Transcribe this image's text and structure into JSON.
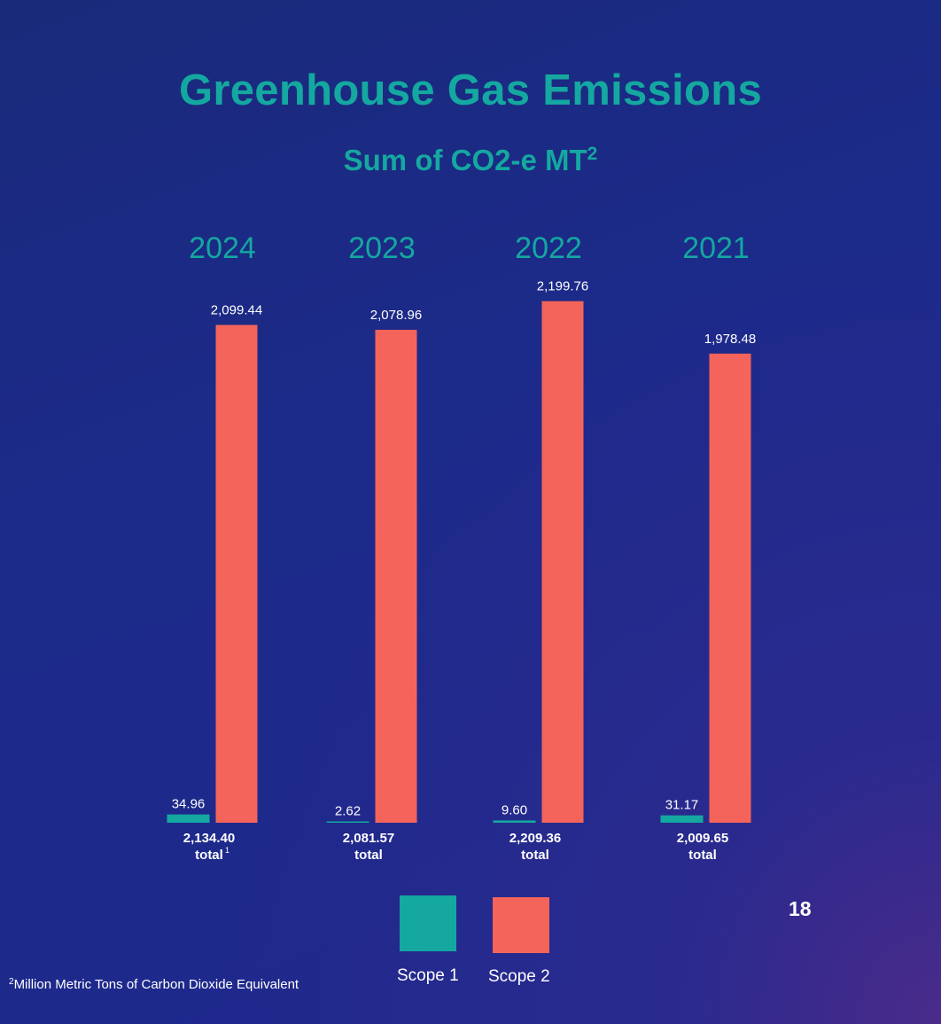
{
  "title": "Greenhouse Gas Emissions",
  "subtitle": "Sum of CO2-e MT",
  "subtitle_superscript": "2",
  "page_number": "18",
  "footnote": {
    "marker": "2",
    "text": "Million Metric Tons of Carbon Dioxide Equivalent"
  },
  "legend": {
    "items": [
      {
        "label": "Scope 1",
        "color": "#14a8a0"
      },
      {
        "label": "Scope 2",
        "color": "#f4645a"
      }
    ]
  },
  "colors": {
    "accent": "#14a8a0",
    "scope1": "#14a8a0",
    "scope2": "#f4645a",
    "text": "#ffffff"
  },
  "chart_data": {
    "type": "bar",
    "categories": [
      "2024",
      "2023",
      "2022",
      "2021"
    ],
    "series": [
      {
        "name": "Scope 1",
        "values": [
          34.96,
          2.62,
          9.6,
          31.17
        ],
        "labels": [
          "34.96",
          "2.62",
          "9.60",
          "31.17"
        ]
      },
      {
        "name": "Scope 2",
        "values": [
          2099.44,
          2078.96,
          2199.76,
          1978.48
        ],
        "labels": [
          "2,099.44",
          "2,078.96",
          "2,199.76",
          "1,978.48"
        ]
      }
    ],
    "totals": [
      {
        "value": "2,134.40",
        "label": "total",
        "footnote_marker": "1"
      },
      {
        "value": "2,081.57",
        "label": "total",
        "footnote_marker": ""
      },
      {
        "value": "2,209.36",
        "label": "total",
        "footnote_marker": ""
      },
      {
        "value": "2,009.65",
        "label": "total",
        "footnote_marker": ""
      }
    ],
    "title": "Greenhouse Gas Emissions",
    "ylim": [
      0,
      2200
    ],
    "grid": false,
    "legend_position": "bottom-center"
  }
}
